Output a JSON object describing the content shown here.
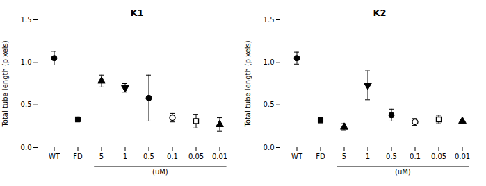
{
  "chart_data": [
    {
      "type": "scatter",
      "title": "K1",
      "categories": [
        "WT",
        "FD",
        "5",
        "1",
        "0.5",
        "0.1",
        "0.05",
        "0.01"
      ],
      "values": [
        1.05,
        0.33,
        0.78,
        0.7,
        0.58,
        0.35,
        0.31,
        0.27
      ],
      "errors": [
        0.08,
        0.03,
        0.07,
        0.05,
        0.27,
        0.05,
        0.08,
        0.08
      ],
      "markers": [
        "circle",
        "square",
        "triangle-up",
        "triangle-down",
        "circle",
        "circle-open",
        "square-open",
        "triangle-up"
      ],
      "color": "black",
      "ylabel": "Total tube length (pixels)",
      "ylim": [
        0,
        1.5
      ],
      "yticks": [
        {
          "value": 0,
          "label": "0.0"
        },
        0.5,
        {
          "value": 1,
          "label": "1.0"
        },
        1.5
      ],
      "annotations": [
        {
          "text": "(uM)",
          "from": "5",
          "to": "0.01"
        }
      ]
    },
    {
      "type": "scatter",
      "title": "K2",
      "categories": [
        "WT",
        "FD",
        "5",
        "1",
        "0.5",
        "0.1",
        "0.05",
        "0.01"
      ],
      "values": [
        1.05,
        0.32,
        0.24,
        0.73,
        0.38,
        0.3,
        0.33,
        0.31
      ],
      "errors": [
        0.07,
        0.03,
        0.04,
        0.17,
        0.07,
        0.04,
        0.05,
        0.02
      ],
      "markers": [
        "circle",
        "square",
        "triangle-up",
        "triangle-down",
        "circle",
        "circle-open",
        "square-open",
        "triangle-up"
      ],
      "color": "black",
      "ylabel": "Total tube length (pixels)",
      "ylim": [
        0,
        1.5
      ],
      "yticks": [
        {
          "value": 0,
          "label": "0.0"
        },
        0.5,
        {
          "value": 1,
          "label": "1.0"
        },
        1.5
      ],
      "annotations": [
        {
          "text": "(uM)",
          "from": "5",
          "to": "0.01"
        }
      ]
    }
  ]
}
